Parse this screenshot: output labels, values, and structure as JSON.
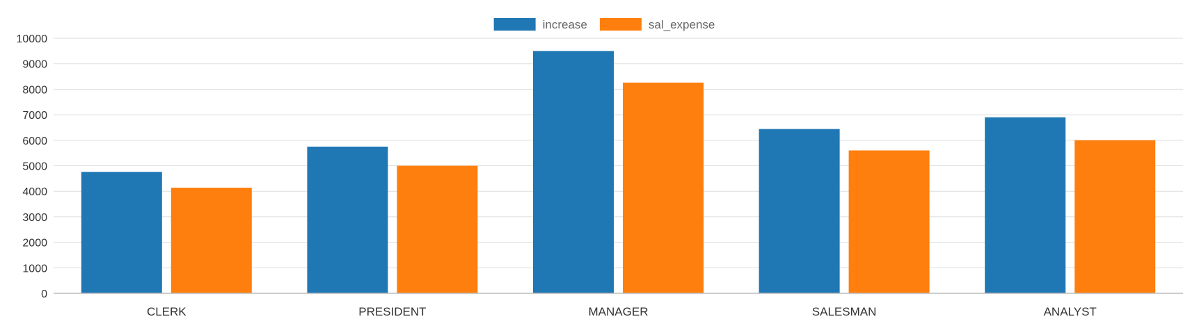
{
  "chart_data": {
    "type": "bar",
    "categories": [
      "CLERK",
      "PRESIDENT",
      "MANAGER",
      "SALESMAN",
      "ANALYST"
    ],
    "series": [
      {
        "name": "increase",
        "color": "#1f77b4",
        "values": [
          4760,
          5750,
          9500,
          6440,
          6900
        ]
      },
      {
        "name": "sal_expense",
        "color": "#ff7f0e",
        "values": [
          4140,
          5000,
          8260,
          5600,
          6000
        ]
      }
    ],
    "yticks": [
      0,
      1000,
      2000,
      3000,
      4000,
      5000,
      6000,
      7000,
      8000,
      9000,
      10000
    ],
    "ylim": [
      0,
      10000
    ],
    "grid": true,
    "legend_position": "top-center"
  }
}
